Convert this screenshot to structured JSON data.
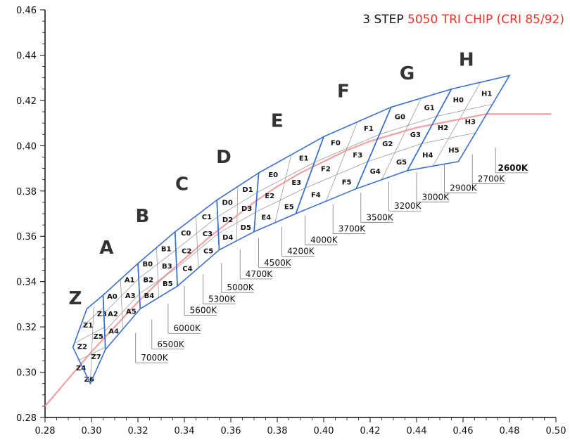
{
  "title": {
    "prefix": "3 STEP ",
    "highlight": "5050 TRI CHIP (CRI 85/92)",
    "prefix_color": "#111111",
    "highlight_color": "#ee3124"
  },
  "colors": {
    "axis": "#111111",
    "locus": "#f4a0a0",
    "bin_outline": "#3b6fd0",
    "grid": "#9a9a9a",
    "label_text": "#111111"
  },
  "chart_data": {
    "type": "scatter",
    "title": "3 STEP 5050 TRI CHIP (CRI 85/92)",
    "xlabel": "",
    "ylabel": "",
    "xlim": [
      0.28,
      0.5
    ],
    "ylim": [
      0.28,
      0.46
    ],
    "x_ticks": [
      "0.28",
      "0.30",
      "0.32",
      "0.34",
      "0.36",
      "0.38",
      "0.40",
      "0.42",
      "0.44",
      "0.46",
      "0.48",
      "0.50"
    ],
    "y_ticks": [
      "0.28",
      "0.30",
      "0.32",
      "0.34",
      "0.36",
      "0.38",
      "0.40",
      "0.42",
      "0.44",
      "0.46"
    ],
    "grid": false,
    "planckian_locus": [
      [
        0.28,
        0.285
      ],
      [
        0.29,
        0.297
      ],
      [
        0.3,
        0.309
      ],
      [
        0.31,
        0.32
      ],
      [
        0.32,
        0.331
      ],
      [
        0.33,
        0.341
      ],
      [
        0.34,
        0.35
      ],
      [
        0.35,
        0.359
      ],
      [
        0.36,
        0.367
      ],
      [
        0.37,
        0.375
      ],
      [
        0.38,
        0.382
      ],
      [
        0.39,
        0.388
      ],
      [
        0.4,
        0.393
      ],
      [
        0.41,
        0.398
      ],
      [
        0.42,
        0.402
      ],
      [
        0.43,
        0.405
      ],
      [
        0.44,
        0.408
      ],
      [
        0.45,
        0.41
      ],
      [
        0.46,
        0.412
      ],
      [
        0.47,
        0.414
      ],
      [
        0.48,
        0.414
      ],
      [
        0.49,
        0.414
      ],
      [
        0.498,
        0.414
      ]
    ],
    "groups": [
      {
        "name": "Z",
        "bins": [
          "Z1",
          "Z3",
          "Z2",
          "Z5",
          "Z4",
          "Z7",
          "Z6"
        ],
        "outline": [
          [
            0.298,
            0.328
          ],
          [
            0.305,
            0.334
          ],
          [
            0.306,
            0.31
          ],
          [
            0.2995,
            0.295
          ],
          [
            0.292,
            0.311
          ]
        ]
      },
      {
        "name": "A",
        "bins": [
          "A0",
          "A1",
          "A2",
          "A3",
          "A4",
          "A5"
        ],
        "outline": [
          [
            0.305,
            0.334
          ],
          [
            0.32,
            0.348
          ],
          [
            0.321,
            0.328
          ],
          [
            0.306,
            0.31
          ]
        ]
      },
      {
        "name": "B",
        "bins": [
          "B0",
          "B1",
          "B2",
          "B3",
          "B4",
          "B5"
        ],
        "outline": [
          [
            0.32,
            0.348
          ],
          [
            0.336,
            0.362
          ],
          [
            0.337,
            0.338
          ],
          [
            0.321,
            0.328
          ]
        ]
      },
      {
        "name": "C",
        "bins": [
          "C0",
          "C1",
          "C2",
          "C3",
          "C4",
          "C5"
        ],
        "outline": [
          [
            0.336,
            0.362
          ],
          [
            0.354,
            0.376
          ],
          [
            0.355,
            0.354
          ],
          [
            0.337,
            0.338
          ]
        ]
      },
      {
        "name": "D",
        "bins": [
          "D0",
          "D1",
          "D2",
          "D3",
          "D4",
          "D5"
        ],
        "outline": [
          [
            0.354,
            0.376
          ],
          [
            0.372,
            0.388
          ],
          [
            0.37,
            0.362
          ],
          [
            0.355,
            0.354
          ]
        ]
      },
      {
        "name": "E",
        "bins": [
          "E0",
          "E1",
          "E2",
          "E3",
          "E4",
          "E5"
        ],
        "outline": [
          [
            0.372,
            0.388
          ],
          [
            0.4,
            0.404
          ],
          [
            0.388,
            0.37
          ],
          [
            0.37,
            0.362
          ]
        ]
      },
      {
        "name": "F",
        "bins": [
          "F0",
          "F1",
          "F2",
          "F3",
          "F4",
          "F5"
        ],
        "outline": [
          [
            0.4,
            0.404
          ],
          [
            0.429,
            0.417
          ],
          [
            0.414,
            0.381
          ],
          [
            0.388,
            0.37
          ]
        ]
      },
      {
        "name": "G",
        "bins": [
          "G0",
          "G1",
          "G2",
          "G3",
          "G4",
          "G5"
        ],
        "outline": [
          [
            0.429,
            0.417
          ],
          [
            0.455,
            0.425
          ],
          [
            0.436,
            0.389
          ],
          [
            0.414,
            0.381
          ]
        ]
      },
      {
        "name": "H",
        "bins": [
          "H0",
          "H1",
          "H2",
          "H3",
          "H4",
          "H5"
        ],
        "outline": [
          [
            0.455,
            0.425
          ],
          [
            0.48,
            0.431
          ],
          [
            0.458,
            0.393
          ],
          [
            0.436,
            0.389
          ]
        ]
      }
    ],
    "cct_labels": [
      {
        "label": "2600K",
        "x": 0.474,
        "y": 0.393
      },
      {
        "label": "2700K",
        "x": 0.464,
        "y": 0.39
      },
      {
        "label": "2900K",
        "x": 0.452,
        "y": 0.386
      },
      {
        "label": "3000K",
        "x": 0.44,
        "y": 0.382
      },
      {
        "label": "3200K",
        "x": 0.428,
        "y": 0.378
      },
      {
        "label": "3500K",
        "x": 0.416,
        "y": 0.373
      },
      {
        "label": "3700K",
        "x": 0.404,
        "y": 0.368
      },
      {
        "label": "4000K",
        "x": 0.392,
        "y": 0.363
      },
      {
        "label": "4200K",
        "x": 0.382,
        "y": 0.358
      },
      {
        "label": "4500K",
        "x": 0.372,
        "y": 0.353
      },
      {
        "label": "4700K",
        "x": 0.364,
        "y": 0.348
      },
      {
        "label": "5000K",
        "x": 0.356,
        "y": 0.342
      },
      {
        "label": "5300K",
        "x": 0.348,
        "y": 0.337
      },
      {
        "label": "5600K",
        "x": 0.34,
        "y": 0.332
      },
      {
        "label": "6000K",
        "x": 0.333,
        "y": 0.324
      },
      {
        "label": "6500K",
        "x": 0.326,
        "y": 0.317
      },
      {
        "label": "7000K",
        "x": 0.319,
        "y": 0.311
      }
    ]
  }
}
